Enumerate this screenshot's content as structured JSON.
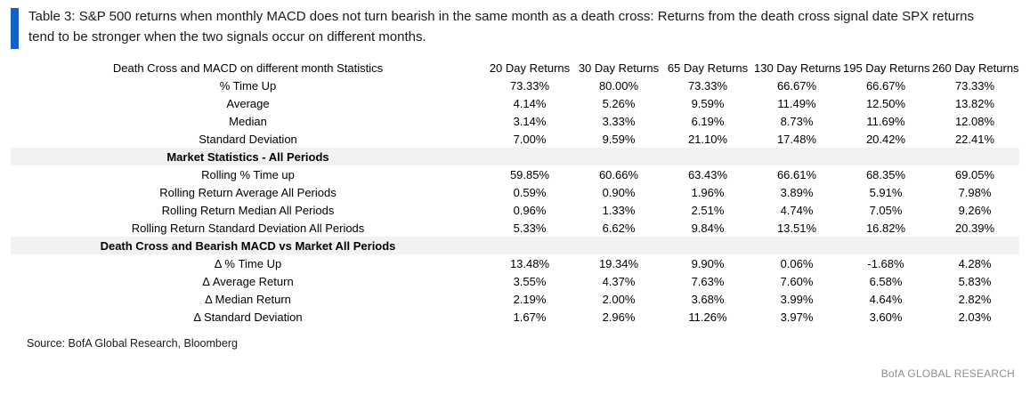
{
  "chart_data": {
    "type": "table",
    "title": "Table 3: S&P 500 returns when monthly MACD does not turn bearish in the same month as a death cross: Returns from the death cross signal date SPX returns tend to be stronger when the two signals occur on different months.",
    "row_header": "Death Cross and MACD on different month Statistics",
    "columns": [
      "20 Day\nReturns",
      "30 Day\nReturns",
      "65 Day\nReturns",
      "130 Day\nReturns",
      "195 Day\nReturns",
      "260 Day\nReturns"
    ],
    "sections": [
      {
        "header": null,
        "rows": [
          {
            "label": "% Time Up",
            "values": [
              "73.33%",
              "80.00%",
              "73.33%",
              "66.67%",
              "66.67%",
              "73.33%"
            ]
          },
          {
            "label": "Average",
            "values": [
              "4.14%",
              "5.26%",
              "9.59%",
              "11.49%",
              "12.50%",
              "13.82%"
            ]
          },
          {
            "label": "Median",
            "values": [
              "3.14%",
              "3.33%",
              "6.19%",
              "8.73%",
              "11.69%",
              "12.08%"
            ]
          },
          {
            "label": "Standard Deviation",
            "values": [
              "7.00%",
              "9.59%",
              "21.10%",
              "17.48%",
              "20.42%",
              "22.41%"
            ]
          }
        ]
      },
      {
        "header": "Market Statistics - All Periods",
        "rows": [
          {
            "label": "Rolling % Time up",
            "values": [
              "59.85%",
              "60.66%",
              "63.43%",
              "66.61%",
              "68.35%",
              "69.05%"
            ]
          },
          {
            "label": "Rolling Return Average All Periods",
            "values": [
              "0.59%",
              "0.90%",
              "1.96%",
              "3.89%",
              "5.91%",
              "7.98%"
            ]
          },
          {
            "label": "Rolling Return Median All Periods",
            "values": [
              "0.96%",
              "1.33%",
              "2.51%",
              "4.74%",
              "7.05%",
              "9.26%"
            ]
          },
          {
            "label": "Rolling Return Standard Deviation All Periods",
            "values": [
              "5.33%",
              "6.62%",
              "9.84%",
              "13.51%",
              "16.82%",
              "20.39%"
            ]
          }
        ]
      },
      {
        "header": "Death Cross and Bearish MACD vs Market All Periods",
        "rows": [
          {
            "label": "Δ % Time Up",
            "values": [
              "13.48%",
              "19.34%",
              "9.90%",
              "0.06%",
              "-1.68%",
              "4.28%"
            ]
          },
          {
            "label": "Δ Average Return",
            "values": [
              "3.55%",
              "4.37%",
              "7.63%",
              "7.60%",
              "6.58%",
              "5.83%"
            ]
          },
          {
            "label": "Δ Median Return",
            "values": [
              "2.19%",
              "2.00%",
              "3.68%",
              "3.99%",
              "4.64%",
              "2.82%"
            ]
          },
          {
            "label": "Δ Standard Deviation",
            "values": [
              "1.67%",
              "2.96%",
              "11.26%",
              "3.97%",
              "3.60%",
              "2.03%"
            ]
          }
        ]
      }
    ]
  },
  "footer": {
    "source": "Source: BofA Global Research, Bloomberg",
    "brand": "BofA GLOBAL RESEARCH"
  },
  "colors": {
    "accent_bar": "#1261C7",
    "section_band": "#F2F2F2",
    "brand_text": "#8F8F8F"
  }
}
